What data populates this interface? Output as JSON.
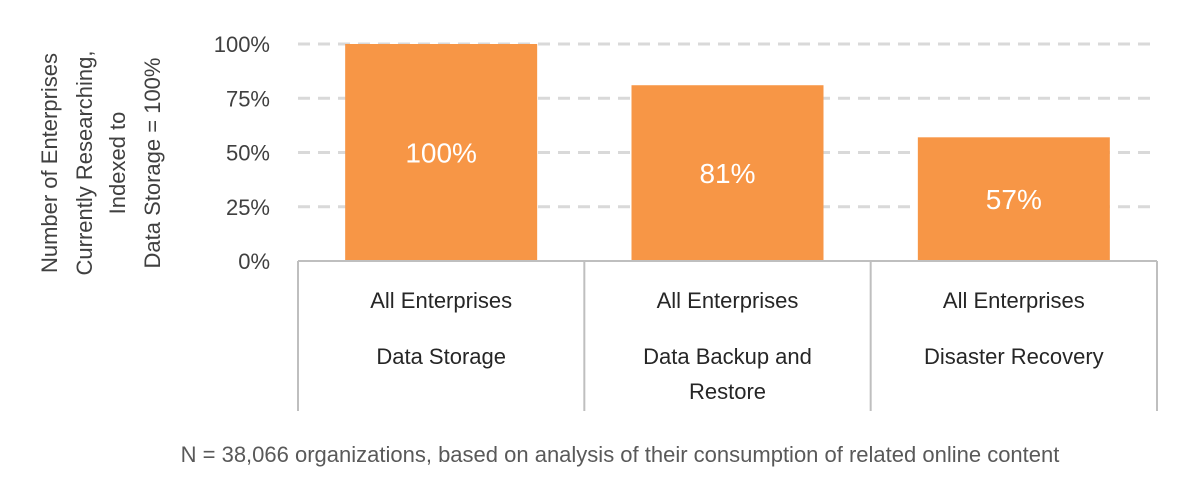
{
  "chart_data": {
    "type": "bar",
    "ylabel_lines": [
      "Number of Enterprises",
      "Currently Researching,",
      "Indexed to",
      "Data Storage = 100%"
    ],
    "ylim": [
      0,
      100
    ],
    "yticks": [
      0,
      25,
      50,
      75,
      100
    ],
    "ytick_labels": [
      "0%",
      "25%",
      "50%",
      "75%",
      "100%"
    ],
    "grid": true,
    "categories": [
      {
        "group": "All Enterprises",
        "name_lines": [
          "Data Storage"
        ]
      },
      {
        "group": "All Enterprises",
        "name_lines": [
          "Data Backup and",
          "Restore"
        ]
      },
      {
        "group": "All Enterprises",
        "name_lines": [
          "Disaster Recovery"
        ]
      }
    ],
    "values": [
      100,
      81,
      57
    ],
    "value_labels": [
      "100%",
      "81%",
      "57%"
    ],
    "colors": {
      "bar": "#F79646",
      "grid": "#D9D9D9",
      "axis": "#BFBFBF"
    }
  },
  "footnote": "N = 38,066 organizations, based on analysis of their consumption of related online content"
}
